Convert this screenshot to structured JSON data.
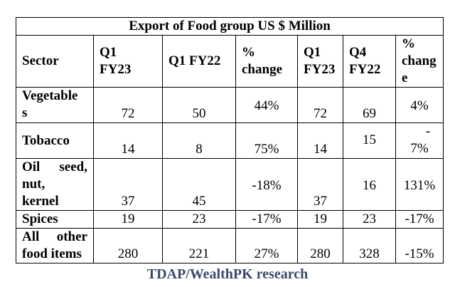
{
  "table": {
    "title": "Export of Food group US $ Million",
    "headers": [
      [
        "Sector"
      ],
      [
        "Q1",
        "FY23"
      ],
      [
        "Q1 FY22"
      ],
      [
        "%",
        "change"
      ],
      [
        "Q1",
        "FY23"
      ],
      [
        "Q4",
        "FY22"
      ],
      [
        "%",
        "chang",
        "e"
      ]
    ],
    "rows": [
      {
        "sector": [
          "Vegetable",
          "s"
        ],
        "q1fy23": "72",
        "q1fy22": "50",
        "pct1": "44%",
        "q1fy23b": "72",
        "q4fy22": "69",
        "pct2": "4%"
      },
      {
        "sector": [
          "Tobacco"
        ],
        "q1fy23": "14",
        "q1fy22": "8",
        "pct1": "75%",
        "q1fy23b": "14",
        "q4fy22": "15",
        "pct2": [
          "-",
          "7%"
        ]
      },
      {
        "sector": [
          "Oil seed,",
          "nut,",
          "kernel"
        ],
        "q1fy23": "37",
        "q1fy22": "45",
        "pct1": "-18%",
        "q1fy23b": "37",
        "q4fy22": "16",
        "pct2": "131%"
      },
      {
        "sector": [
          "Spices"
        ],
        "q1fy23": "19",
        "q1fy22": "23",
        "pct1": "-17%",
        "q1fy23b": "19",
        "q4fy22": "23",
        "pct2": "-17%"
      },
      {
        "sector": [
          "All other",
          "food items"
        ],
        "q1fy23": "280",
        "q1fy22": "221",
        "pct1": "27%",
        "q1fy23b": "280",
        "q4fy22": "328",
        "pct2": "-15%"
      }
    ]
  },
  "footer": "TDAP/WealthPK research"
}
